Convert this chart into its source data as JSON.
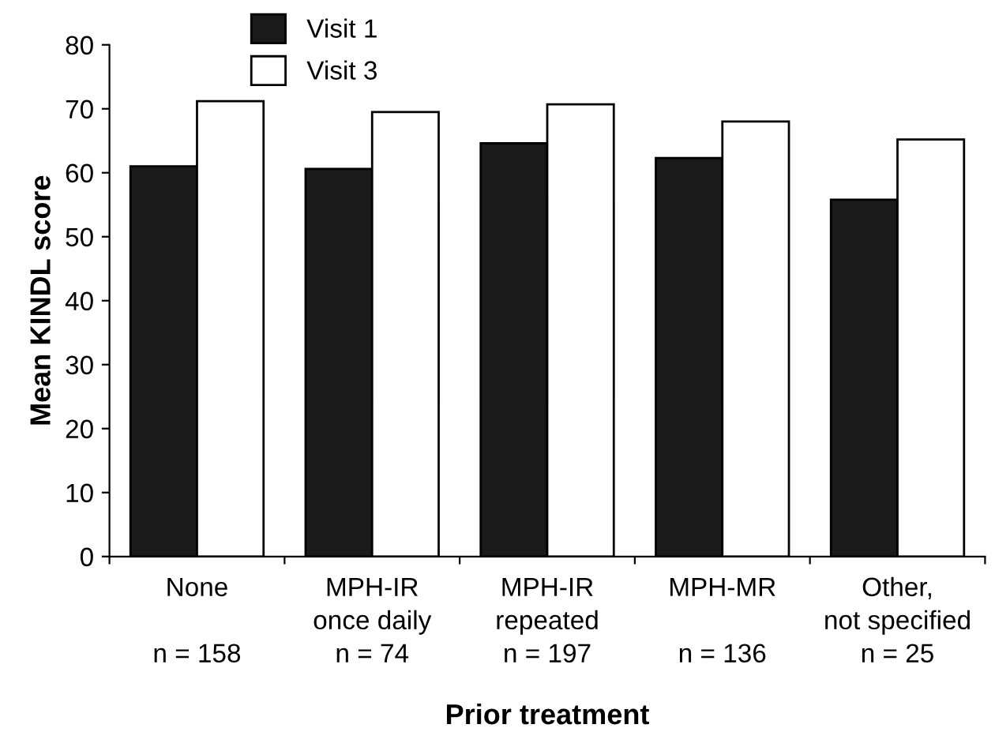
{
  "chart_data": {
    "type": "bar",
    "xlabel": "Prior treatment",
    "ylabel": "Mean KINDL score",
    "categories": [
      "None\n\nn = 158",
      "MPH-IR\nonce daily\nn = 74",
      "MPH-IR\nrepeated\nn = 197",
      "MPH-MR\n\nn = 136",
      "Other,\nnot specified\nn = 25"
    ],
    "series": [
      {
        "name": "Visit 1",
        "color": "#1a1a1a",
        "values": [
          61,
          60.6,
          64.6,
          62.3,
          55.8
        ]
      },
      {
        "name": "Visit 3",
        "color": "#ffffff",
        "values": [
          71.2,
          69.5,
          70.7,
          68,
          65.2
        ]
      }
    ],
    "ylim": [
      0,
      80
    ],
    "yticks": [
      0,
      10,
      20,
      30,
      40,
      50,
      60,
      70,
      80
    ],
    "grid": false,
    "legend": "top left"
  }
}
